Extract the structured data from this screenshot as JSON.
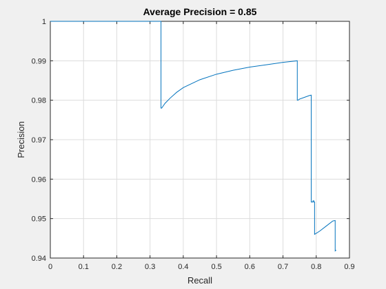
{
  "chart_data": {
    "type": "line",
    "title": "Average Precision = 0.85",
    "xlabel": "Recall",
    "ylabel": "Precision",
    "xlim": [
      0,
      0.9
    ],
    "ylim": [
      0.94,
      1
    ],
    "xticks": [
      0,
      0.1,
      0.2,
      0.3,
      0.4,
      0.5,
      0.6,
      0.7,
      0.8,
      0.9
    ],
    "xtick_labels": [
      "0",
      "0.1",
      "0.2",
      "0.3",
      "0.4",
      "0.5",
      "0.6",
      "0.7",
      "0.8",
      "0.9"
    ],
    "yticks": [
      0.94,
      0.95,
      0.96,
      0.97,
      0.98,
      0.99,
      1
    ],
    "ytick_labels": [
      "0.94",
      "0.95",
      "0.96",
      "0.97",
      "0.98",
      "0.99",
      "1"
    ],
    "grid": true,
    "line_color": "#0072bd",
    "series": [
      {
        "x": [
          0,
          0.333,
          0.333,
          0.335,
          0.345,
          0.36,
          0.38,
          0.4,
          0.45,
          0.5,
          0.55,
          0.6,
          0.65,
          0.7,
          0.743,
          0.743,
          0.745,
          0.75,
          0.76,
          0.77,
          0.78,
          0.785,
          0.785,
          0.79,
          0.79,
          0.793,
          0.793,
          0.795,
          0.795,
          0.81,
          0.83,
          0.85,
          0.857,
          0.857,
          0.86
        ],
        "y": [
          1,
          1,
          0.978,
          0.978,
          0.9792,
          0.9805,
          0.982,
          0.9832,
          0.9852,
          0.9866,
          0.9876,
          0.9884,
          0.989,
          0.9896,
          0.99,
          0.98,
          0.98,
          0.9803,
          0.9806,
          0.9809,
          0.9812,
          0.9813,
          0.9542,
          0.9542,
          0.9545,
          0.9545,
          0.9542,
          0.9542,
          0.946,
          0.9468,
          0.9481,
          0.9494,
          0.9495,
          0.9418,
          0.942
        ]
      }
    ]
  }
}
